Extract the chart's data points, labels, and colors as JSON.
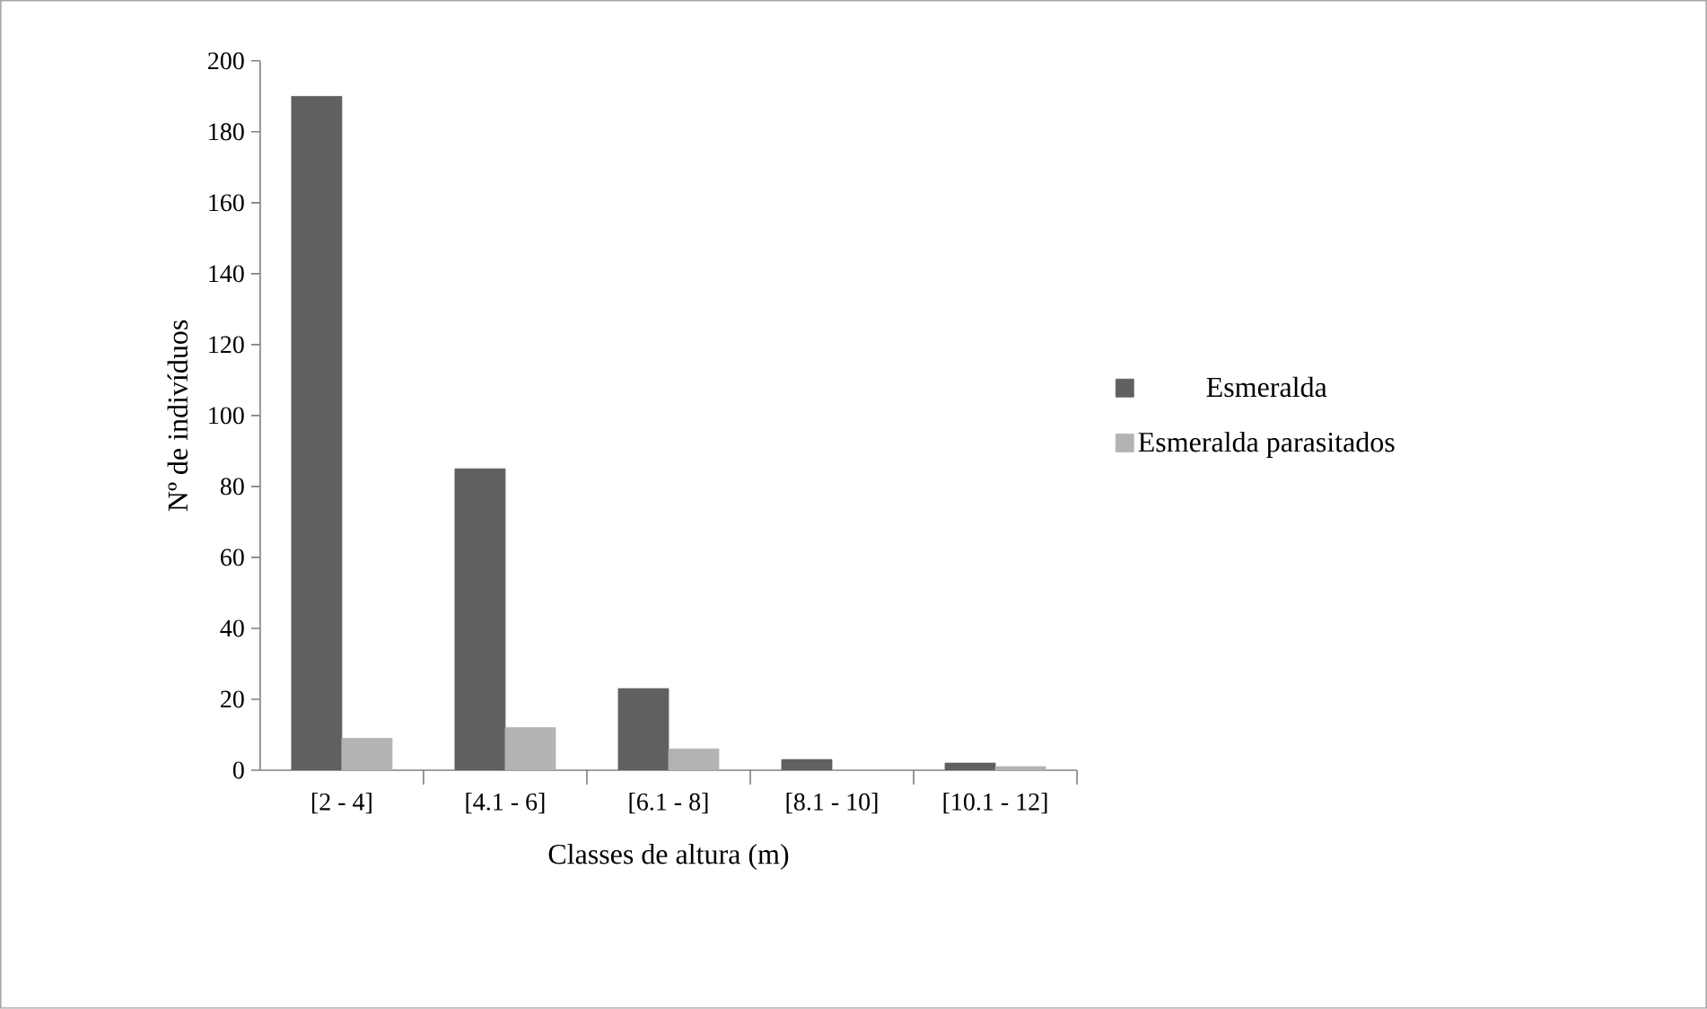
{
  "chart_data": {
    "type": "bar",
    "xlabel": "Classes de altura (m)",
    "ylabel": "Nº de indivíduos",
    "categories": [
      "[2 - 4]",
      "[4.1 - 6]",
      "[6.1 - 8]",
      "[8.1 - 10]",
      "[10.1 - 12]"
    ],
    "series": [
      {
        "name": "Esmeralda",
        "color": "#606060",
        "values": [
          190,
          85,
          23,
          3,
          2
        ]
      },
      {
        "name": "Esmeralda parasitados",
        "color": "#b3b3b3",
        "values": [
          9,
          12,
          6,
          0,
          1
        ]
      }
    ],
    "ylim": [
      0,
      200
    ],
    "yticks": [
      0,
      20,
      40,
      60,
      80,
      100,
      120,
      140,
      160,
      180,
      200
    ],
    "grid": false,
    "legend": "right"
  }
}
